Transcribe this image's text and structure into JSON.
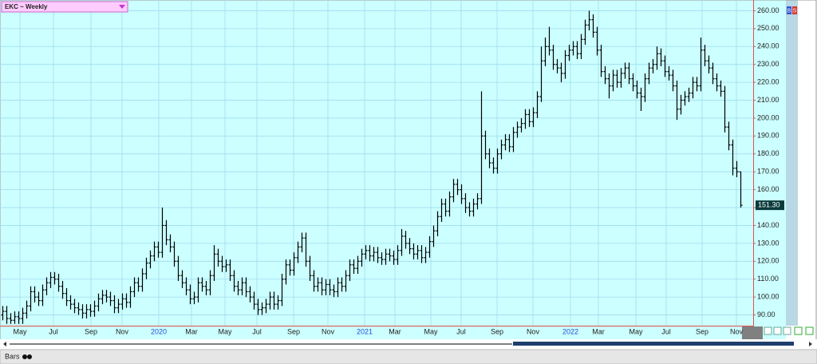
{
  "ui": {
    "symbol_menu": "EKC ~ Weekly",
    "chart_style": "Bars",
    "buy": "B",
    "sell": "S"
  },
  "chart_data": {
    "type": "ohlc",
    "color": "#000000",
    "grid": true,
    "last_price": {
      "value": 151.3,
      "label": "151.30"
    },
    "xlim": [
      -0.6,
      188.2
    ],
    "xticks": [
      {
        "value": 4.4,
        "label": "May"
      },
      {
        "value": 12.8,
        "label": "Jul"
      },
      {
        "value": 22.2,
        "label": "Sep"
      },
      {
        "value": 30,
        "label": "Nov"
      },
      {
        "value": 39.2,
        "label": "2020"
      },
      {
        "value": 47.4,
        "label": "Mar"
      },
      {
        "value": 55.8,
        "label": "May"
      },
      {
        "value": 63.8,
        "label": "Jul"
      },
      {
        "value": 73,
        "label": "Sep"
      },
      {
        "value": 81.6,
        "label": "Nov"
      },
      {
        "value": 90.8,
        "label": "2021"
      },
      {
        "value": 98.4,
        "label": "Mar"
      },
      {
        "value": 107.4,
        "label": "May"
      },
      {
        "value": 115,
        "label": "Jul"
      },
      {
        "value": 124,
        "label": "Sep"
      },
      {
        "value": 133,
        "label": "Nov"
      },
      {
        "value": 142.4,
        "label": "2022"
      },
      {
        "value": 149.4,
        "label": "Mar"
      },
      {
        "value": 158.8,
        "label": "May"
      },
      {
        "value": 166.4,
        "label": "Jul"
      },
      {
        "value": 175.4,
        "label": "Sep"
      },
      {
        "value": 184,
        "label": "Nov"
      }
    ],
    "ylim": [
      84,
      266
    ],
    "yticks": [
      {
        "value": 90,
        "label": "90.00"
      },
      {
        "value": 100,
        "label": "100.00"
      },
      {
        "value": 110,
        "label": "110.00"
      },
      {
        "value": 120,
        "label": "120.00"
      },
      {
        "value": 130,
        "label": "130.00"
      },
      {
        "value": 140,
        "label": "140.00"
      },
      {
        "value": 150,
        "label": "150.00"
      },
      {
        "value": 160,
        "label": "160.00"
      },
      {
        "value": 170,
        "label": "170.00"
      },
      {
        "value": 180,
        "label": "180.00"
      },
      {
        "value": 190,
        "label": "190.00"
      },
      {
        "value": 200,
        "label": "200.00"
      },
      {
        "value": 210,
        "label": "210.00"
      },
      {
        "value": 220,
        "label": "220.00"
      },
      {
        "value": 230,
        "label": "230.00"
      },
      {
        "value": 240,
        "label": "240.00"
      },
      {
        "value": 250,
        "label": "250.00"
      },
      {
        "value": 260,
        "label": "260.00"
      }
    ],
    "open": [
      90,
      92,
      88,
      87,
      89,
      88,
      91,
      95,
      103,
      100,
      98,
      104,
      108,
      111,
      110,
      106,
      102,
      98,
      96,
      94,
      93,
      91,
      93,
      92,
      95,
      99,
      101,
      100,
      98,
      94,
      96,
      99,
      97,
      103,
      108,
      106,
      113,
      119,
      123,
      128,
      125,
      140,
      132,
      128,
      120,
      112,
      108,
      104,
      99,
      100,
      108,
      106,
      104,
      112,
      124,
      120,
      117,
      118,
      112,
      106,
      104,
      108,
      103,
      100,
      96,
      93,
      94,
      96,
      100,
      96,
      98,
      110,
      118,
      115,
      122,
      128,
      133,
      120,
      112,
      106,
      108,
      104,
      107,
      104,
      103,
      108,
      106,
      112,
      118,
      116,
      120,
      124,
      126,
      123,
      125,
      122,
      121,
      124,
      123,
      121,
      126,
      134,
      130,
      127,
      124,
      126,
      122,
      125,
      131,
      137,
      145,
      152,
      148,
      156,
      163,
      160,
      155,
      150,
      148,
      152,
      155,
      190,
      180,
      175,
      172,
      180,
      185,
      188,
      184,
      192,
      195,
      197,
      202,
      198,
      203,
      212,
      232,
      240,
      238,
      230,
      228,
      225,
      235,
      238,
      240,
      236,
      244,
      252,
      255,
      248,
      238,
      226,
      222,
      218,
      224,
      220,
      225,
      228,
      222,
      218,
      214,
      212,
      222,
      228,
      230,
      236,
      232,
      226,
      224,
      218,
      205,
      210,
      212,
      214,
      220,
      218,
      238,
      232,
      228,
      222,
      218,
      215,
      195,
      185,
      172,
      170
    ],
    "high": [
      95,
      95,
      91,
      92,
      92,
      94,
      98,
      106,
      106,
      103,
      107,
      111,
      114,
      114,
      113,
      109,
      105,
      101,
      99,
      97,
      96,
      96,
      96,
      98,
      102,
      104,
      104,
      103,
      101,
      99,
      102,
      102,
      106,
      111,
      111,
      116,
      122,
      126,
      131,
      131,
      150,
      143,
      135,
      131,
      123,
      115,
      111,
      107,
      103,
      111,
      111,
      109,
      115,
      129,
      127,
      123,
      121,
      121,
      115,
      109,
      111,
      111,
      106,
      103,
      99,
      97,
      99,
      103,
      103,
      101,
      113,
      121,
      121,
      125,
      131,
      136,
      136,
      123,
      115,
      111,
      111,
      110,
      110,
      107,
      111,
      111,
      115,
      121,
      121,
      123,
      127,
      129,
      129,
      128,
      128,
      125,
      127,
      127,
      126,
      129,
      138,
      137,
      133,
      130,
      129,
      129,
      128,
      134,
      140,
      148,
      155,
      155,
      159,
      166,
      166,
      163,
      158,
      153,
      155,
      158,
      215,
      193,
      183,
      178,
      183,
      188,
      191,
      191,
      195,
      198,
      200,
      205,
      205,
      206,
      215,
      240,
      245,
      251,
      241,
      233,
      231,
      238,
      241,
      243,
      243,
      247,
      255,
      260,
      258,
      251,
      241,
      229,
      225,
      227,
      227,
      228,
      231,
      231,
      225,
      221,
      217,
      225,
      231,
      233,
      240,
      239,
      235,
      229,
      227,
      221,
      213,
      215,
      217,
      223,
      223,
      245,
      241,
      235,
      231,
      225,
      221,
      218,
      198,
      188,
      176,
      170
    ],
    "low": [
      87,
      85,
      85,
      85,
      85,
      85,
      88,
      92,
      97,
      95,
      95,
      101,
      105,
      107,
      103,
      99,
      95,
      93,
      91,
      90,
      88,
      88,
      89,
      89,
      92,
      96,
      97,
      95,
      91,
      91,
      93,
      94,
      94,
      100,
      103,
      103,
      110,
      116,
      120,
      122,
      122,
      129,
      125,
      117,
      109,
      105,
      101,
      96,
      96,
      97,
      103,
      101,
      101,
      109,
      117,
      114,
      114,
      109,
      103,
      101,
      101,
      100,
      97,
      93,
      90,
      90,
      91,
      93,
      93,
      93,
      95,
      107,
      112,
      112,
      119,
      125,
      117,
      109,
      103,
      103,
      101,
      101,
      101,
      100,
      100,
      103,
      103,
      109,
      113,
      113,
      117,
      121,
      120,
      120,
      119,
      118,
      118,
      120,
      118,
      118,
      123,
      127,
      124,
      121,
      121,
      119,
      119,
      122,
      128,
      134,
      142,
      145,
      145,
      153,
      157,
      152,
      147,
      145,
      145,
      149,
      152,
      177,
      172,
      169,
      169,
      177,
      182,
      181,
      181,
      189,
      192,
      194,
      195,
      195,
      200,
      209,
      229,
      235,
      227,
      225,
      220,
      222,
      232,
      235,
      233,
      233,
      241,
      249,
      245,
      235,
      223,
      219,
      211,
      215,
      217,
      217,
      222,
      219,
      215,
      211,
      204,
      209,
      219,
      225,
      227,
      229,
      223,
      221,
      215,
      199,
      202,
      207,
      209,
      211,
      215,
      215,
      229,
      225,
      219,
      215,
      212,
      192,
      182,
      168,
      167,
      150
    ],
    "close": [
      92,
      88,
      87,
      89,
      88,
      91,
      95,
      103,
      100,
      98,
      104,
      108,
      111,
      110,
      106,
      102,
      98,
      96,
      94,
      93,
      91,
      93,
      92,
      95,
      99,
      101,
      100,
      98,
      94,
      96,
      99,
      97,
      103,
      108,
      106,
      113,
      119,
      123,
      128,
      125,
      140,
      132,
      128,
      120,
      112,
      108,
      104,
      99,
      100,
      108,
      106,
      104,
      112,
      124,
      120,
      117,
      118,
      112,
      106,
      104,
      108,
      103,
      100,
      96,
      93,
      94,
      96,
      100,
      96,
      98,
      110,
      118,
      115,
      122,
      128,
      133,
      120,
      112,
      106,
      108,
      104,
      107,
      104,
      103,
      108,
      106,
      112,
      118,
      116,
      120,
      124,
      126,
      123,
      125,
      122,
      121,
      124,
      123,
      121,
      126,
      134,
      130,
      127,
      124,
      126,
      122,
      125,
      131,
      137,
      145,
      152,
      148,
      156,
      163,
      160,
      155,
      150,
      148,
      152,
      155,
      190,
      180,
      175,
      172,
      180,
      185,
      188,
      184,
      192,
      195,
      197,
      202,
      198,
      203,
      212,
      232,
      240,
      238,
      230,
      228,
      225,
      235,
      238,
      240,
      236,
      244,
      252,
      255,
      248,
      238,
      226,
      222,
      218,
      224,
      220,
      225,
      228,
      222,
      218,
      214,
      212,
      222,
      228,
      230,
      236,
      232,
      226,
      224,
      218,
      205,
      210,
      212,
      214,
      220,
      218,
      238,
      232,
      228,
      222,
      218,
      215,
      195,
      185,
      172,
      170,
      151.3
    ]
  }
}
